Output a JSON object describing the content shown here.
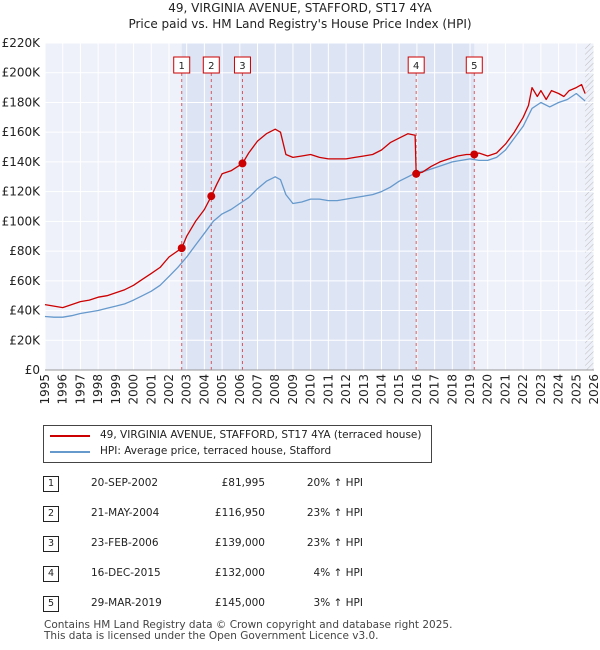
{
  "chart_data": {
    "type": "line",
    "title": "49, VIRGINIA AVENUE, STAFFORD, ST17 4YA",
    "subtitle": "Price paid vs. HM Land Registry's House Price Index (HPI)",
    "xlabel": "",
    "ylabel": "",
    "xlim": [
      1995,
      2026
    ],
    "ylim": [
      0,
      220000
    ],
    "x_ticks": [
      "1995",
      "1996",
      "1997",
      "1998",
      "1999",
      "2000",
      "2001",
      "2002",
      "2003",
      "2004",
      "2005",
      "2006",
      "2007",
      "2008",
      "2009",
      "2010",
      "2011",
      "2012",
      "2013",
      "2014",
      "2015",
      "2016",
      "2017",
      "2018",
      "2019",
      "2020",
      "2021",
      "2022",
      "2023",
      "2024",
      "2025",
      "2026"
    ],
    "y_ticks": [
      {
        "value": 0,
        "label": "£0"
      },
      {
        "value": 20000,
        "label": "£20K"
      },
      {
        "value": 40000,
        "label": "£40K"
      },
      {
        "value": 60000,
        "label": "£60K"
      },
      {
        "value": 80000,
        "label": "£80K"
      },
      {
        "value": 100000,
        "label": "£100K"
      },
      {
        "value": 120000,
        "label": "£120K"
      },
      {
        "value": 140000,
        "label": "£140K"
      },
      {
        "value": 160000,
        "label": "£160K"
      },
      {
        "value": 180000,
        "label": "£180K"
      },
      {
        "value": 200000,
        "label": "£200K"
      },
      {
        "value": 220000,
        "label": "£220K"
      }
    ],
    "series": [
      {
        "name": "49, VIRGINIA AVENUE, STAFFORD, ST17 4YA (terraced house)",
        "color": "#cc0000",
        "x": [
          1995.0,
          1995.5,
          1996.0,
          1996.5,
          1997.0,
          1997.5,
          1998.0,
          1998.5,
          1999.0,
          1999.5,
          2000.0,
          2000.5,
          2001.0,
          2001.5,
          2002.0,
          2002.72,
          2003.0,
          2003.5,
          2004.0,
          2004.39,
          2004.7,
          2005.0,
          2005.5,
          2006.15,
          2006.5,
          2007.0,
          2007.5,
          2008.0,
          2008.3,
          2008.6,
          2009.0,
          2009.5,
          2010.0,
          2010.5,
          2011.0,
          2011.5,
          2012.0,
          2012.5,
          2013.0,
          2013.5,
          2014.0,
          2014.5,
          2015.0,
          2015.5,
          2015.9,
          2015.96,
          2016.3,
          2016.8,
          2017.3,
          2017.8,
          2018.3,
          2018.8,
          2019.24,
          2019.5,
          2020.0,
          2020.5,
          2021.0,
          2021.5,
          2022.0,
          2022.3,
          2022.5,
          2022.8,
          2023.0,
          2023.3,
          2023.6,
          2024.0,
          2024.3,
          2024.6,
          2025.0,
          2025.3,
          2025.5
        ],
        "values": [
          44000,
          43000,
          42000,
          44000,
          46000,
          47000,
          49000,
          50000,
          52000,
          54000,
          57000,
          61000,
          65000,
          69000,
          76000,
          81995,
          90000,
          100000,
          108000,
          116950,
          125000,
          132000,
          134000,
          139000,
          146000,
          154000,
          159000,
          162000,
          160000,
          145000,
          143000,
          144000,
          145000,
          143000,
          142000,
          142000,
          142000,
          143000,
          144000,
          145000,
          148000,
          153000,
          156000,
          159000,
          158000,
          132000,
          133000,
          137000,
          140000,
          142000,
          144000,
          145000,
          145000,
          146000,
          144000,
          146000,
          152000,
          160000,
          170000,
          178000,
          190000,
          184000,
          188000,
          182000,
          188000,
          186000,
          184000,
          188000,
          190000,
          192000,
          186000
        ]
      },
      {
        "name": "HPI: Average price, terraced house, Stafford",
        "color": "#6699cc",
        "x": [
          1995.0,
          1995.5,
          1996.0,
          1996.5,
          1997.0,
          1997.5,
          1998.0,
          1998.5,
          1999.0,
          1999.5,
          2000.0,
          2000.5,
          2001.0,
          2001.5,
          2002.0,
          2002.5,
          2003.0,
          2003.5,
          2004.0,
          2004.5,
          2005.0,
          2005.5,
          2006.0,
          2006.5,
          2007.0,
          2007.5,
          2008.0,
          2008.3,
          2008.6,
          2009.0,
          2009.5,
          2010.0,
          2010.5,
          2011.0,
          2011.5,
          2012.0,
          2012.5,
          2013.0,
          2013.5,
          2014.0,
          2014.5,
          2015.0,
          2015.5,
          2016.0,
          2016.5,
          2017.0,
          2017.5,
          2018.0,
          2018.5,
          2019.0,
          2019.5,
          2020.0,
          2020.5,
          2021.0,
          2021.5,
          2022.0,
          2022.5,
          2023.0,
          2023.5,
          2024.0,
          2024.5,
          2025.0,
          2025.5
        ],
        "values": [
          36000,
          35500,
          35500,
          36500,
          38000,
          39000,
          40000,
          41500,
          43000,
          44500,
          47000,
          50000,
          53000,
          57000,
          63000,
          69000,
          76000,
          84000,
          92000,
          100000,
          105000,
          108000,
          112000,
          116000,
          122000,
          127000,
          130000,
          128000,
          118000,
          112000,
          113000,
          115000,
          115000,
          114000,
          114000,
          115000,
          116000,
          117000,
          118000,
          120000,
          123000,
          127000,
          130000,
          133000,
          134000,
          136000,
          138000,
          140000,
          141000,
          142000,
          141000,
          141000,
          143000,
          148000,
          156000,
          164000,
          176000,
          180000,
          177000,
          180000,
          182000,
          186000,
          181000
        ]
      }
    ],
    "transactions": [
      {
        "n": "1",
        "date": "20-SEP-2002",
        "price": "£81,995",
        "hpi": "20% ↑ HPI",
        "x": 2002.72,
        "y": 81995
      },
      {
        "n": "2",
        "date": "21-MAY-2004",
        "price": "£116,950",
        "hpi": "23% ↑ HPI",
        "x": 2004.39,
        "y": 116950
      },
      {
        "n": "3",
        "date": "23-FEB-2006",
        "price": "£139,000",
        "hpi": "23% ↑ HPI",
        "x": 2006.15,
        "y": 139000
      },
      {
        "n": "4",
        "date": "16-DEC-2015",
        "price": "£132,000",
        "hpi": "4% ↑ HPI",
        "x": 2015.96,
        "y": 132000
      },
      {
        "n": "5",
        "date": "29-MAR-2019",
        "price": "£145,000",
        "hpi": "3% ↑ HPI",
        "x": 2019.24,
        "y": 145000
      }
    ],
    "shade_band": [
      2002.72,
      2019.24
    ],
    "future_start": 2025.5
  },
  "footer": {
    "line1": "Contains HM Land Registry data © Crown copyright and database right 2025.",
    "line2": "This data is licensed under the Open Government Licence v3.0."
  },
  "colors": {
    "shade": "#dde4f4",
    "grid": "#ffffff",
    "marker": "#cc0000"
  }
}
